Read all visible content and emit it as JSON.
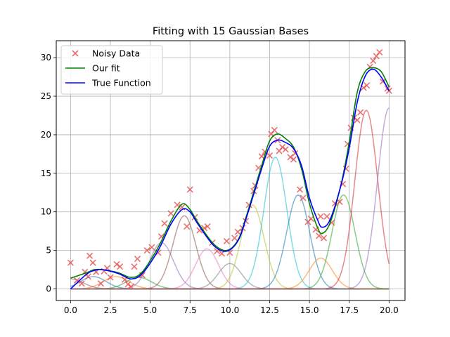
{
  "chart_data": {
    "type": "line",
    "title": "Fitting with 15 Gaussian Bases",
    "xlabel": "",
    "ylabel": "",
    "xlim": [
      -0.9,
      21.0
    ],
    "ylim": [
      -1.5,
      32.2
    ],
    "xticks": [
      0.0,
      2.5,
      5.0,
      7.5,
      10.0,
      12.5,
      15.0,
      17.5,
      20.0
    ],
    "xtick_labels": [
      "0.0",
      "2.5",
      "5.0",
      "7.5",
      "10.0",
      "12.5",
      "15.0",
      "17.5",
      "20.0"
    ],
    "yticks": [
      0,
      5,
      10,
      15,
      20,
      25,
      30
    ],
    "ytick_labels": [
      "0",
      "5",
      "10",
      "15",
      "20",
      "25",
      "30"
    ],
    "grid": true,
    "legend_position": "top-left",
    "legend": [
      {
        "label": "Noisy Data",
        "marker": "x",
        "color": "#e45756"
      },
      {
        "label": "Our fit",
        "marker": "line",
        "color": "#008000"
      },
      {
        "label": "True Function",
        "marker": "line",
        "color": "#0000ff"
      }
    ],
    "true_function": {
      "name": "True Function",
      "color": "#0000ff",
      "x": [
        0,
        1,
        1.5,
        2,
        3,
        3.8,
        4.5,
        5.5,
        6.3,
        7,
        7.5,
        8,
        9,
        9.8,
        10.5,
        11,
        12,
        12.5,
        13,
        13.5,
        14,
        14.5,
        15,
        15.5,
        15.8,
        16.3,
        17,
        17.5,
        18,
        18.5,
        19,
        19.5,
        20
      ],
      "y": [
        0,
        1.9,
        2.4,
        2.5,
        2.0,
        1.3,
        2.0,
        5.0,
        8.4,
        10.3,
        10.0,
        8.4,
        5.6,
        4.9,
        6.2,
        9.0,
        15.6,
        18.5,
        19.3,
        19.0,
        18.2,
        16.0,
        11.8,
        9.0,
        8.0,
        9.0,
        13.6,
        18.3,
        24.2,
        27.6,
        28.5,
        27.5,
        25.7
      ]
    },
    "fit": {
      "name": "Our fit",
      "color": "#008000",
      "x": [
        0,
        1,
        1.5,
        2,
        3,
        3.8,
        4.5,
        5.5,
        6.3,
        7,
        7.5,
        8,
        9,
        9.8,
        10.5,
        11,
        12,
        12.5,
        13,
        13.5,
        14,
        14.5,
        15,
        15.5,
        15.8,
        16.3,
        17,
        17.5,
        18,
        18.5,
        19,
        19.5,
        20
      ],
      "y": [
        1.4,
        2.1,
        2.5,
        2.5,
        2.1,
        1.5,
        2.2,
        5.4,
        8.8,
        11.0,
        10.3,
        8.6,
        5.8,
        5.0,
        6.3,
        9.2,
        16.0,
        19.2,
        20.1,
        19.5,
        18.4,
        15.6,
        11.1,
        8.0,
        7.2,
        8.6,
        13.7,
        19.1,
        25.5,
        28.2,
        28.7,
        28.2,
        26.2
      ]
    },
    "noisy_data": {
      "name": "Noisy Data",
      "color": "#e45756",
      "points": [
        [
          0.0,
          3.4
        ],
        [
          0.4,
          1.1
        ],
        [
          0.7,
          0.7
        ],
        [
          0.9,
          2.2
        ],
        [
          1.1,
          1.6
        ],
        [
          1.2,
          4.3
        ],
        [
          1.4,
          3.4
        ],
        [
          1.6,
          2.2
        ],
        [
          1.9,
          0.7
        ],
        [
          2.1,
          2.3
        ],
        [
          2.3,
          2.7
        ],
        [
          2.5,
          1.5
        ],
        [
          2.9,
          3.2
        ],
        [
          3.1,
          2.9
        ],
        [
          3.4,
          1.2
        ],
        [
          3.6,
          0.6
        ],
        [
          3.8,
          0.3
        ],
        [
          4.0,
          2.9
        ],
        [
          4.2,
          3.9
        ],
        [
          4.5,
          1.8
        ],
        [
          4.8,
          5.0
        ],
        [
          5.1,
          5.4
        ],
        [
          5.5,
          4.7
        ],
        [
          5.7,
          6.8
        ],
        [
          5.9,
          8.5
        ],
        [
          6.3,
          9.8
        ],
        [
          6.7,
          10.9
        ],
        [
          7.0,
          10.6
        ],
        [
          7.3,
          8.1
        ],
        [
          7.5,
          12.9
        ],
        [
          7.8,
          9.3
        ],
        [
          8.1,
          7.6
        ],
        [
          8.4,
          7.9
        ],
        [
          8.6,
          8.1
        ],
        [
          8.9,
          6.0
        ],
        [
          9.2,
          4.9
        ],
        [
          9.5,
          4.6
        ],
        [
          9.8,
          6.2
        ],
        [
          10.0,
          4.7
        ],
        [
          10.3,
          6.6
        ],
        [
          10.5,
          7.4
        ],
        [
          10.8,
          7.9
        ],
        [
          11.0,
          8.8
        ],
        [
          11.2,
          10.9
        ],
        [
          11.5,
          12.7
        ],
        [
          11.6,
          13.4
        ],
        [
          11.8,
          15.7
        ],
        [
          12.0,
          17.2
        ],
        [
          12.2,
          17.8
        ],
        [
          12.5,
          17.3
        ],
        [
          12.6,
          20.1
        ],
        [
          12.8,
          20.6
        ],
        [
          13.0,
          19.3
        ],
        [
          13.1,
          17.9
        ],
        [
          13.3,
          18.4
        ],
        [
          13.5,
          18.1
        ],
        [
          13.8,
          17.1
        ],
        [
          14.0,
          16.8
        ],
        [
          14.1,
          17.6
        ],
        [
          14.4,
          12.9
        ],
        [
          14.6,
          11.8
        ],
        [
          14.9,
          8.7
        ],
        [
          15.1,
          9.1
        ],
        [
          15.4,
          7.7
        ],
        [
          15.6,
          6.9
        ],
        [
          15.7,
          9.4
        ],
        [
          15.9,
          6.6
        ],
        [
          16.1,
          9.4
        ],
        [
          16.4,
          8.6
        ],
        [
          16.6,
          11.1
        ],
        [
          16.9,
          11.3
        ],
        [
          17.1,
          13.6
        ],
        [
          17.3,
          15.6
        ],
        [
          17.4,
          18.8
        ],
        [
          17.6,
          20.9
        ],
        [
          17.8,
          22.2
        ],
        [
          18.0,
          21.9
        ],
        [
          18.2,
          22.9
        ],
        [
          18.4,
          26.1
        ],
        [
          18.6,
          26.4
        ],
        [
          18.8,
          28.8
        ],
        [
          19.0,
          29.6
        ],
        [
          19.2,
          30.2
        ],
        [
          19.4,
          30.7
        ],
        [
          19.6,
          26.9
        ],
        [
          19.9,
          26.0
        ],
        [
          20.0,
          25.7
        ]
      ]
    },
    "basis_functions": [
      {
        "center": 1.43,
        "amplitude": 1.6,
        "sigma": 0.8,
        "color": "#1f77b4"
      },
      {
        "center": 2.86,
        "amplitude": 1.6,
        "sigma": 0.8,
        "color": "#ff7f0e"
      },
      {
        "center": 4.29,
        "amplitude": 1.5,
        "sigma": 0.8,
        "color": "#2ca02c"
      },
      {
        "center": 5.71,
        "amplitude": 6.0,
        "sigma": 0.75,
        "color": "#9467bd"
      },
      {
        "center": 7.14,
        "amplitude": 9.5,
        "sigma": 0.72,
        "color": "#8c564b"
      },
      {
        "center": 8.57,
        "amplitude": 5.2,
        "sigma": 0.72,
        "color": "#e377c2"
      },
      {
        "center": 10.0,
        "amplitude": 3.3,
        "sigma": 0.72,
        "color": "#7f7f7f"
      },
      {
        "center": 11.43,
        "amplitude": 10.9,
        "sigma": 0.72,
        "color": "#bcbd22"
      },
      {
        "center": 12.86,
        "amplitude": 17.1,
        "sigma": 0.72,
        "color": "#17becf"
      },
      {
        "center": 14.29,
        "amplitude": 12.2,
        "sigma": 0.72,
        "color": "#1f77b4"
      },
      {
        "center": 15.71,
        "amplitude": 4.0,
        "sigma": 0.72,
        "color": "#ff7f0e"
      },
      {
        "center": 17.14,
        "amplitude": 12.2,
        "sigma": 0.72,
        "color": "#2ca02c"
      },
      {
        "center": 18.57,
        "amplitude": 23.2,
        "sigma": 0.72,
        "color": "#d62728"
      },
      {
        "center": 20.0,
        "amplitude": 23.5,
        "sigma": 0.72,
        "color": "#9467bd"
      },
      {
        "center": 0.0,
        "amplitude": 1.3,
        "sigma": 0.8,
        "color": "#8c564b"
      }
    ]
  }
}
